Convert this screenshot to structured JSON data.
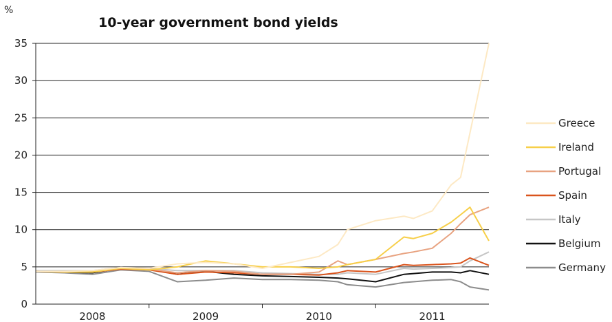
{
  "chart_data": {
    "type": "line",
    "title": "10-year government bond yields",
    "y_unit_label": "%",
    "ylim": [
      0,
      35
    ],
    "yticks": [
      0,
      5,
      10,
      15,
      20,
      25,
      30,
      35
    ],
    "xlim": [
      "2007-09",
      "2011-09"
    ],
    "x_tick_labels": [
      "2008",
      "2009",
      "2010",
      "2011"
    ],
    "grid": "horizontal",
    "legend_position": "right",
    "x": [
      "2007-09",
      "2007-12",
      "2008-03",
      "2008-06",
      "2008-09",
      "2008-12",
      "2009-03",
      "2009-06",
      "2009-09",
      "2009-12",
      "2010-03",
      "2010-05",
      "2010-06",
      "2010-09",
      "2010-12",
      "2011-01",
      "2011-03",
      "2011-05",
      "2011-06",
      "2011-07",
      "2011-09"
    ],
    "series": [
      {
        "name": "Greece",
        "color": "#fde9c4",
        "values": [
          4.4,
          4.4,
          4.5,
          4.9,
          4.8,
          5.4,
          5.6,
          5.4,
          4.8,
          5.6,
          6.4,
          8.0,
          10.0,
          11.2,
          11.8,
          11.5,
          12.5,
          16.0,
          17.0,
          23.0,
          35.0
        ]
      },
      {
        "name": "Ireland",
        "color": "#f7cf49",
        "values": [
          4.4,
          4.3,
          4.3,
          4.8,
          4.6,
          5.0,
          5.8,
          5.4,
          5.0,
          5.0,
          4.8,
          5.0,
          5.3,
          6.0,
          9.0,
          8.8,
          9.5,
          11.0,
          12.0,
          13.0,
          8.5
        ]
      },
      {
        "name": "Portugal",
        "color": "#e8a381",
        "values": [
          4.4,
          4.3,
          4.3,
          4.8,
          4.7,
          4.2,
          4.5,
          4.4,
          4.0,
          4.0,
          4.3,
          5.8,
          5.3,
          6.0,
          6.8,
          7.0,
          7.5,
          9.5,
          10.8,
          12.0,
          13.0
        ]
      },
      {
        "name": "Spain",
        "color": "#d9541d",
        "values": [
          4.4,
          4.3,
          4.3,
          4.7,
          4.6,
          4.0,
          4.3,
          4.2,
          4.0,
          4.0,
          3.9,
          4.2,
          4.5,
          4.3,
          5.3,
          5.2,
          5.3,
          5.4,
          5.5,
          6.2,
          5.2
        ]
      },
      {
        "name": "Italy",
        "color": "#c6c6c6",
        "values": [
          4.5,
          4.5,
          4.5,
          4.9,
          4.8,
          4.5,
          4.5,
          4.5,
          4.2,
          4.1,
          4.0,
          4.0,
          4.2,
          4.0,
          4.8,
          4.7,
          4.8,
          4.9,
          5.0,
          5.8,
          7.0
        ]
      },
      {
        "name": "Belgium",
        "color": "#111111",
        "values": [
          4.4,
          4.3,
          4.2,
          4.8,
          4.7,
          4.0,
          4.4,
          4.0,
          3.8,
          3.7,
          3.6,
          3.5,
          3.4,
          3.0,
          4.0,
          4.1,
          4.3,
          4.3,
          4.2,
          4.5,
          4.0
        ]
      },
      {
        "name": "Germany",
        "color": "#8c8c8c",
        "values": [
          4.3,
          4.2,
          4.0,
          4.6,
          4.4,
          3.0,
          3.2,
          3.5,
          3.3,
          3.3,
          3.2,
          3.0,
          2.6,
          2.3,
          2.9,
          3.0,
          3.2,
          3.3,
          3.0,
          2.3,
          1.9
        ]
      }
    ]
  }
}
